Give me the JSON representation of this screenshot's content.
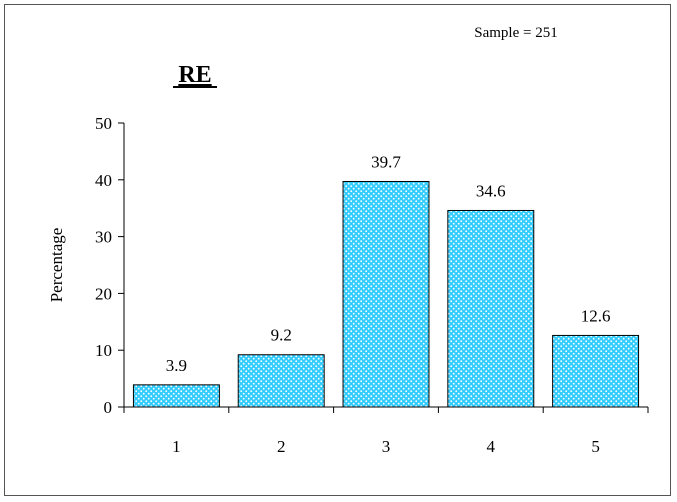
{
  "chart_data": {
    "type": "bar",
    "title": "RE",
    "annotation": "Sample = 251",
    "xlabel": "",
    "ylabel": "Percentage",
    "categories": [
      "1",
      "2",
      "3",
      "4",
      "5"
    ],
    "values": [
      3.9,
      9.2,
      39.7,
      34.6,
      12.6
    ],
    "value_labels": [
      "3.9",
      "9.2",
      "39.7",
      "34.6",
      "12.6"
    ],
    "ylim": [
      0,
      50
    ],
    "yticks": [
      "0",
      "10",
      "20",
      "30",
      "40",
      "50"
    ],
    "grid": false,
    "legend": "none",
    "bar_color": "#33ccff",
    "bar_pattern_color": "#ffffff"
  }
}
